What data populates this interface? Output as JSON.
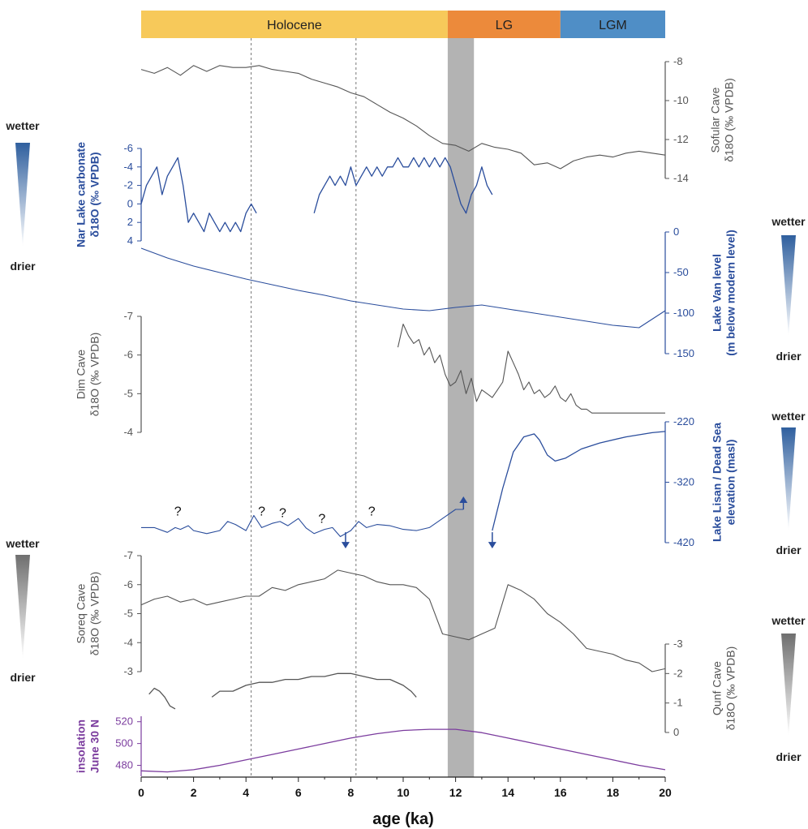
{
  "chart_data": {
    "type": "line",
    "xlabel": "age (ka)",
    "x_range": [
      0,
      20
    ],
    "x_ticks": [
      "0",
      "2",
      "4",
      "6",
      "8",
      "10",
      "12",
      "14",
      "16",
      "18",
      "20"
    ],
    "periods": [
      {
        "label": "Holocene",
        "start": 0,
        "end": 11.7,
        "color": "#f7c95a"
      },
      {
        "label": "LG",
        "start": 11.7,
        "end": 16.0,
        "color": "#ec8a3b"
      },
      {
        "label": "LGM",
        "start": 16.0,
        "end": 20.0,
        "color": "#4f8ec6"
      }
    ],
    "shaded_band": {
      "start": 11.7,
      "end": 12.7,
      "color": "#b3b3b3"
    },
    "dashed_lines": [
      4.2,
      8.2
    ],
    "colors": {
      "gray": "#555555",
      "blue": "#2a4d9c",
      "purple": "#7b3c9e"
    },
    "panels": [
      {
        "name": "Sofular Cave",
        "label_lines": [
          "Sofular Cave",
          "δ18O (‰ VPDB)"
        ],
        "axis": "right",
        "color": "#555555",
        "ylim": [
          -14,
          -8
        ],
        "ticks": [
          "-8",
          "-10",
          "-12",
          "-14"
        ],
        "x": [
          0,
          0.5,
          1,
          1.5,
          2,
          2.5,
          3,
          3.5,
          4,
          4.5,
          5,
          5.5,
          6,
          6.5,
          7,
          7.5,
          8,
          8.5,
          9,
          9.5,
          10,
          10.5,
          11,
          11.5,
          12,
          12.5,
          13,
          13.5,
          14,
          14.5,
          15,
          15.5,
          16,
          16.5,
          17,
          17.5,
          18,
          18.5,
          19,
          19.5,
          20
        ],
        "y": [
          -8.4,
          -8.6,
          -8.3,
          -8.7,
          -8.2,
          -8.5,
          -8.2,
          -8.3,
          -8.3,
          -8.2,
          -8.4,
          -8.5,
          -8.6,
          -8.9,
          -9.1,
          -9.3,
          -9.6,
          -9.8,
          -10.2,
          -10.6,
          -10.9,
          -11.3,
          -11.8,
          -12.2,
          -12.3,
          -12.6,
          -12.2,
          -12.4,
          -12.5,
          -12.7,
          -13.3,
          -13.2,
          -13.5,
          -13.1,
          -12.9,
          -12.8,
          -12.9,
          -12.7,
          -12.6,
          -12.7,
          -12.8
        ]
      },
      {
        "name": "Nar Lake carbonate",
        "label_lines": [
          "Nar Lake carbonate",
          "δ18O (‰ VPDB)"
        ],
        "axis": "left",
        "color": "#2a4d9c",
        "ylim": [
          4,
          -6
        ],
        "ticks": [
          "-6",
          "-4",
          "-2",
          "0",
          "2",
          "4"
        ],
        "segments": [
          {
            "x": [
              0,
              0.2,
              0.4,
              0.6,
              0.8,
              1,
              1.2,
              1.4,
              1.6,
              1.8,
              2,
              2.2,
              2.4,
              2.6,
              2.8,
              3,
              3.2,
              3.4,
              3.6,
              3.8,
              4,
              4.2,
              4.4
            ],
            "y": [
              0,
              -2,
              -3,
              -4,
              -1,
              -3,
              -4,
              -5,
              -2,
              2,
              1,
              2,
              3,
              1,
              2,
              3,
              2,
              3,
              2,
              3,
              1,
              0,
              1
            ]
          },
          {
            "x": [
              6.6,
              6.8,
              7,
              7.2,
              7.4,
              7.6,
              7.8,
              8,
              8.2,
              8.4,
              8.6,
              8.8,
              9,
              9.2,
              9.4,
              9.6,
              9.8,
              10,
              10.2,
              10.4,
              10.6,
              10.8,
              11,
              11.2,
              11.4,
              11.6,
              11.8,
              12,
              12.2,
              12.4,
              12.6,
              12.8,
              13,
              13.2,
              13.4
            ],
            "y": [
              1,
              -1,
              -2,
              -3,
              -2,
              -3,
              -2,
              -4,
              -2,
              -3,
              -4,
              -3,
              -4,
              -3,
              -4,
              -4,
              -5,
              -4,
              -4,
              -5,
              -4,
              -5,
              -4,
              -5,
              -4,
              -5,
              -4,
              -2,
              0,
              1,
              -1,
              -2,
              -4,
              -2,
              -1
            ]
          }
        ]
      },
      {
        "name": "Lake Van level",
        "label_lines": [
          "Lake Van level",
          "(m below modern level)"
        ],
        "axis": "right",
        "color": "#2a4d9c",
        "ylim": [
          -150,
          0
        ],
        "ticks": [
          "0",
          "-50",
          "-100",
          "-150"
        ],
        "x": [
          0,
          1,
          2,
          3,
          4,
          5,
          6,
          7,
          8,
          9,
          10,
          11,
          12,
          13,
          14,
          15,
          16,
          17,
          18,
          19,
          20
        ],
        "y": [
          -20,
          -32,
          -42,
          -50,
          -58,
          -65,
          -72,
          -78,
          -85,
          -90,
          -95,
          -97,
          -93,
          -90,
          -95,
          -100,
          -105,
          -110,
          -115,
          -118,
          -97
        ]
      },
      {
        "name": "Dim Cave",
        "label_lines": [
          "Dim Cave",
          "δ18O (‰ VPDB)"
        ],
        "axis": "left",
        "color": "#555555",
        "ylim": [
          -4,
          -7
        ],
        "ticks": [
          "-7",
          "-6",
          "-5",
          "-4"
        ],
        "x": [
          9.8,
          10,
          10.2,
          10.4,
          10.6,
          10.8,
          11,
          11.2,
          11.4,
          11.6,
          11.8,
          12,
          12.2,
          12.4,
          12.6,
          12.8,
          13,
          13.2,
          13.4,
          13.6,
          13.8,
          14,
          14.2,
          14.4,
          14.6,
          14.8,
          15,
          15.2,
          15.4,
          15.6,
          15.8,
          16,
          16.2,
          16.4,
          16.6,
          16.8,
          17,
          17.2,
          17.5,
          18,
          18.5,
          19,
          19.5,
          20
        ],
        "y": [
          -6.2,
          -6.8,
          -6.5,
          -6.3,
          -6.4,
          -6.0,
          -6.2,
          -5.8,
          -6.0,
          -5.5,
          -5.2,
          -5.3,
          -5.6,
          -5.0,
          -5.4,
          -4.8,
          -5.1,
          -5.0,
          -4.9,
          -5.1,
          -5.3,
          -6.1,
          -5.8,
          -5.5,
          -5.1,
          -5.3,
          -5.0,
          -5.1,
          -4.9,
          -5.0,
          -5.2,
          -4.9,
          -4.8,
          -5.0,
          -4.7,
          -4.6,
          -4.6,
          -4.5,
          -4.5,
          -4.5,
          -4.5,
          -4.5,
          -4.5,
          -4.5
        ]
      },
      {
        "name": "Lake Lisan / Dead Sea",
        "label_lines": [
          "Lake Lisan / Dead Sea",
          "elevation (masl)"
        ],
        "axis": "right",
        "color": "#2a4d9c",
        "ylim": [
          -420,
          -220
        ],
        "ticks": [
          "-220",
          "-320",
          "-420"
        ],
        "x": [
          0,
          0.5,
          1,
          1.3,
          1.5,
          1.8,
          2,
          2.5,
          3,
          3.3,
          3.6,
          4,
          4.3,
          4.6,
          5,
          5.3,
          5.6,
          6,
          6.3,
          6.6,
          7,
          7.3,
          7.6,
          8,
          8.3,
          8.6,
          9,
          9.5,
          10,
          10.5,
          11,
          11.5,
          12,
          12.3
        ],
        "y": [
          -395,
          -395,
          -403,
          -395,
          -398,
          -392,
          -400,
          -405,
          -400,
          -385,
          -390,
          -400,
          -375,
          -395,
          -388,
          -385,
          -392,
          -380,
          -396,
          -405,
          -398,
          -395,
          -410,
          -400,
          -385,
          -395,
          -390,
          -392,
          -398,
          -400,
          -395,
          -380,
          -365,
          -365
        ],
        "x2": [
          13.4,
          13.8,
          14.2,
          14.6,
          15,
          15.2,
          15.5,
          15.8,
          16.2,
          16.8,
          17.5,
          18.5,
          19.5,
          20
        ],
        "y2": [
          -400,
          -330,
          -270,
          -245,
          -240,
          -250,
          -275,
          -285,
          -280,
          -265,
          -255,
          -245,
          -238,
          -236
        ],
        "question_marks": [
          {
            "x": 1.4,
            "y": -375
          },
          {
            "x": 4.6,
            "y": -375
          },
          {
            "x": 5.4,
            "y": -378
          },
          {
            "x": 6.9,
            "y": -387
          },
          {
            "x": 8.8,
            "y": -375
          }
        ],
        "arrows": [
          {
            "x": 7.8,
            "dir": "down"
          },
          {
            "x": 12.3,
            "dir": "up"
          },
          {
            "x": 13.4,
            "dir": "down"
          }
        ]
      },
      {
        "name": "Soreq Cave",
        "label_lines": [
          "Soreq Cave",
          "δ18O (‰ VPDB)"
        ],
        "axis": "left",
        "color": "#555555",
        "ylim": [
          -3,
          -7
        ],
        "ticks": [
          "-7",
          "-6",
          "-5",
          "-4",
          "-3"
        ],
        "x": [
          0,
          0.5,
          1,
          1.5,
          2,
          2.5,
          3,
          3.5,
          4,
          4.5,
          5,
          5.5,
          6,
          6.5,
          7,
          7.5,
          8,
          8.5,
          9,
          9.5,
          10,
          10.5,
          11,
          11.5,
          12,
          12.5,
          13,
          13.5,
          14,
          14.5,
          15,
          15.5,
          16,
          16.5,
          17,
          17.5,
          18,
          18.5,
          19,
          19.5,
          20
        ],
        "y": [
          -5.3,
          -5.5,
          -5.6,
          -5.4,
          -5.5,
          -5.3,
          -5.4,
          -5.5,
          -5.6,
          -5.6,
          -5.9,
          -5.8,
          -6.0,
          -6.1,
          -6.2,
          -6.5,
          -6.4,
          -6.3,
          -6.1,
          -6.0,
          -6.0,
          -5.9,
          -5.5,
          -4.3,
          -4.2,
          -4.1,
          -4.3,
          -4.5,
          -6.0,
          -5.8,
          -5.5,
          -5.0,
          -4.7,
          -4.3,
          -3.8,
          -3.7,
          -3.6,
          -3.4,
          -3.3,
          -3.0,
          -3.1
        ]
      },
      {
        "name": "Qunf Cave",
        "label_lines": [
          "Qunf Cave",
          "δ18O (‰ VPDB)"
        ],
        "axis": "right",
        "color": "#555555",
        "ylim": [
          0,
          -3
        ],
        "ticks": [
          "-3",
          "-2",
          "-1",
          "0"
        ],
        "segments": [
          {
            "x": [
              0.3,
              0.5,
              0.7,
              0.9,
              1.1,
              1.3
            ],
            "y": [
              -1.3,
              -1.5,
              -1.4,
              -1.2,
              -0.9,
              -0.8
            ]
          },
          {
            "x": [
              2.7,
              3,
              3.5,
              4,
              4.5,
              5,
              5.5,
              6,
              6.5,
              7,
              7.5,
              8,
              8.5,
              9,
              9.5,
              10,
              10.3,
              10.5
            ],
            "y": [
              -1.2,
              -1.4,
              -1.4,
              -1.6,
              -1.7,
              -1.7,
              -1.8,
              -1.8,
              -1.9,
              -1.9,
              -2.0,
              -2.0,
              -1.9,
              -1.8,
              -1.8,
              -1.6,
              -1.4,
              -1.2
            ]
          }
        ]
      },
      {
        "name": "insolation June 30 N",
        "label_lines": [
          "insolation",
          "June 30 N"
        ],
        "axis": "left",
        "color": "#7b3c9e",
        "ylim": [
          470,
          525
        ],
        "ticks": [
          "520",
          "500",
          "480"
        ],
        "x": [
          0,
          1,
          2,
          3,
          4,
          5,
          6,
          7,
          8,
          9,
          10,
          11,
          12,
          13,
          14,
          15,
          16,
          17,
          18,
          19,
          20
        ],
        "y": [
          475,
          474,
          476,
          480,
          485,
          490,
          495,
          500,
          505,
          509,
          512,
          513,
          513,
          510,
          505,
          500,
          495,
          490,
          485,
          480,
          476
        ]
      }
    ],
    "side_labels": {
      "wetter": "wetter",
      "drier": "drier"
    }
  }
}
